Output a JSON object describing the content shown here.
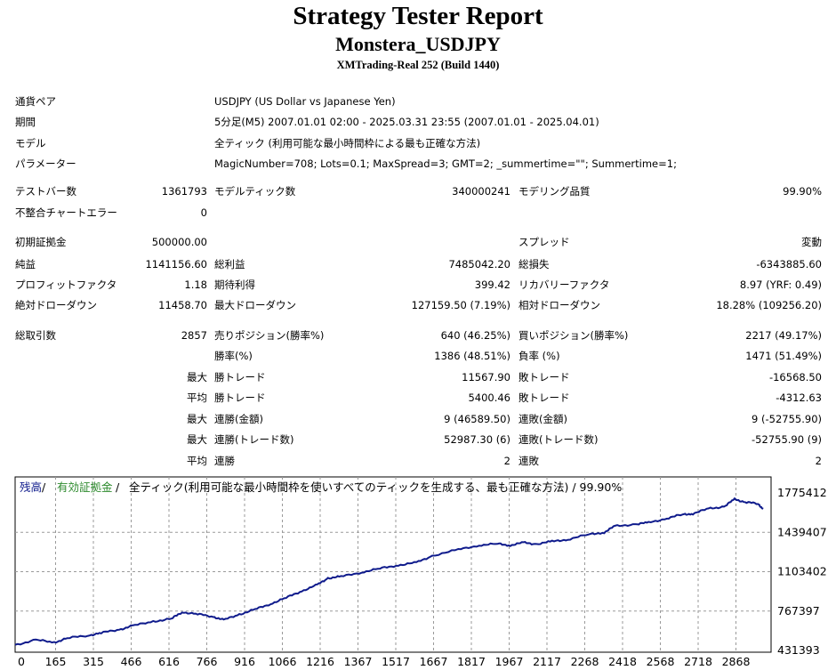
{
  "header": {
    "title": "Strategy Tester Report",
    "ea_name": "Monstera_USDJPY",
    "server": "XMTrading-Real 252 (Build 1440)"
  },
  "info": [
    {
      "label": "通貨ペア",
      "value": "USDJPY (US Dollar vs Japanese Yen)"
    },
    {
      "label": "期間",
      "value": "5分足(M5) 2007.01.01 02:00 - 2025.03.31 23:55 (2007.01.01 - 2025.04.01)"
    },
    {
      "label": "モデル",
      "value": "全ティック (利用可能な最小時間枠による最も正確な方法)"
    },
    {
      "label": "パラメーター",
      "value": "MagicNumber=708; Lots=0.1; MaxSpread=3; GMT=2; _summertime=\"\"; Summertime=1;"
    }
  ],
  "test": {
    "bars_label": "テストバー数",
    "bars": "1361793",
    "ticks_label": "モデルティック数",
    "ticks": "340000241",
    "quality_label": "モデリング品質",
    "quality": "99.90%",
    "errors_label": "不整合チャートエラー",
    "errors": "0"
  },
  "money": {
    "deposit_label": "初期証拠金",
    "deposit": "500000.00",
    "spread_label": "スプレッド",
    "spread": "変動",
    "net_label": "純益",
    "net": "1141156.60",
    "gross_profit_label": "総利益",
    "gross_profit": "7485042.20",
    "gross_loss_label": "総損失",
    "gross_loss": "-6343885.60",
    "pf_label": "プロフィットファクタ",
    "pf": "1.18",
    "expected_label": "期待利得",
    "expected": "399.42",
    "recovery_label": "リカバリーファクタ",
    "recovery": "8.97 (YRF: 0.49)",
    "abs_dd_label": "絶対ドローダウン",
    "abs_dd": "11458.70",
    "max_dd_label": "最大ドローダウン",
    "max_dd": "127159.50 (7.19%)",
    "rel_dd_label": "相対ドローダウン",
    "rel_dd": "18.28% (109256.20)"
  },
  "trades": {
    "total_label": "総取引数",
    "total": "2857",
    "short_label": "売りポジション(勝率%)",
    "short": "640 (46.25%)",
    "long_label": "買いポジション(勝率%)",
    "long": "2217 (49.17%)",
    "rows": [
      {
        "prefix": "",
        "l1": "勝率(%)",
        "v1": "1386 (48.51%)",
        "l2": "負率 (%)",
        "v2": "1471 (51.49%)"
      },
      {
        "prefix": "最大",
        "l1": "勝トレード",
        "v1": "11567.90",
        "l2": "敗トレード",
        "v2": "-16568.50"
      },
      {
        "prefix": "平均",
        "l1": "勝トレード",
        "v1": "5400.46",
        "l2": "敗トレード",
        "v2": "-4312.63"
      },
      {
        "prefix": "最大",
        "l1": "連勝(金額)",
        "v1": "9 (46589.50)",
        "l2": "連敗(金額)",
        "v2": "9 (-52755.90)"
      },
      {
        "prefix": "最大",
        "l1": "連勝(トレード数)",
        "v1": "52987.30 (6)",
        "l2": "連敗(トレード数)",
        "v2": "-52755.90 (9)"
      },
      {
        "prefix": "平均",
        "l1": "連勝",
        "v1": "2",
        "l2": "連敗",
        "v2": "2"
      }
    ]
  },
  "chart_legend": {
    "balance": "残高",
    "sep1": " / ",
    "equity": "有効証拠金",
    "sep2": " / ",
    "rest": "全ティック(利用可能な最小時間枠を使いすべてのティックを生成する、最も正確な方法) / 99.90%"
  },
  "colors": {
    "balance_line": "#0f1b8c",
    "equity_legend": "#2e8b2e",
    "balance_legend": "#0f1b8c",
    "grid": "#9a9a9a"
  },
  "chart_data": {
    "type": "line",
    "x_ticks": [
      "0",
      "165",
      "315",
      "466",
      "616",
      "766",
      "916",
      "1066",
      "1216",
      "1367",
      "1517",
      "1667",
      "1817",
      "1967",
      "2117",
      "2268",
      "2418",
      "2568",
      "2718",
      "2868"
    ],
    "y_ticks": [
      "1775412",
      "1439407",
      "1103402",
      "767397",
      "431393"
    ],
    "ylim": [
      431393,
      1775412
    ],
    "xlim": [
      0,
      2900
    ],
    "grid": true,
    "series": [
      {
        "name": "残高",
        "x": [
          0,
          80,
          150,
          200,
          280,
          330,
          400,
          450,
          530,
          600,
          640,
          700,
          760,
          800,
          860,
          920,
          980,
          1040,
          1100,
          1160,
          1200,
          1250,
          1330,
          1400,
          1470,
          1540,
          1600,
          1700,
          1780,
          1850,
          1900,
          1950,
          2000,
          2060,
          2120,
          2200,
          2260,
          2300,
          2380,
          2430,
          2500,
          2560,
          2600,
          2660,
          2720,
          2760,
          2800,
          2850,
          2870
        ],
        "y": [
          480000,
          520000,
          500000,
          535000,
          560000,
          580000,
          610000,
          640000,
          680000,
          700000,
          760000,
          740000,
          720000,
          690000,
          740000,
          780000,
          830000,
          880000,
          940000,
          990000,
          1050000,
          1060000,
          1100000,
          1130000,
          1160000,
          1180000,
          1240000,
          1290000,
          1330000,
          1340000,
          1330000,
          1350000,
          1340000,
          1360000,
          1380000,
          1420000,
          1440000,
          1490000,
          1510000,
          1520000,
          1560000,
          1590000,
          1600000,
          1640000,
          1660000,
          1720000,
          1700000,
          1680000,
          1640000
        ]
      }
    ]
  }
}
